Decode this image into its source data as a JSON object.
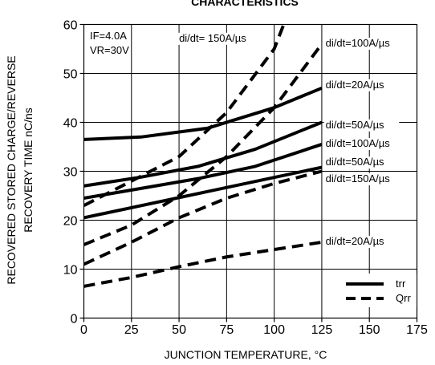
{
  "chart_data": {
    "type": "line",
    "title": "CHARACTERISTICS",
    "xlabel": "JUNCTION TEMPERATURE, °C",
    "ylabel": [
      "RECOVERED STORED CHARGE/REVERSE",
      "RECOVERY TIME nC/ns"
    ],
    "xlim": [
      0,
      175
    ],
    "ylim": [
      0,
      60
    ],
    "x_ticks": [
      0,
      25,
      50,
      75,
      100,
      125,
      150,
      175
    ],
    "y_ticks": [
      0,
      10,
      20,
      30,
      40,
      50,
      60
    ],
    "grid": true,
    "conditions": {
      "if_label": "IF=4.0A",
      "vr_label": "VR=30V"
    },
    "legend": {
      "position": "bottom-right",
      "trr": "trr",
      "qrr": "Qrr"
    },
    "series": [
      {
        "kind": "trr",
        "label": "di/dt=20A/µs",
        "x": [
          0,
          30,
          65,
          100,
          125
        ],
        "y": [
          36.5,
          37,
          38.8,
          43,
          47
        ]
      },
      {
        "kind": "trr",
        "label": "di/dt=50A/µs",
        "x": [
          0,
          30,
          60,
          90,
          125
        ],
        "y": [
          27,
          28.8,
          31,
          34.5,
          40
        ]
      },
      {
        "kind": "trr",
        "label": "di/dt=100A/µs",
        "x": [
          0,
          30,
          60,
          90,
          125
        ],
        "y": [
          24.5,
          26.5,
          28.5,
          31,
          35.5
        ]
      },
      {
        "kind": "trr",
        "label": "di/dt=150A/µs",
        "x": [
          0,
          125
        ],
        "y": [
          20.5,
          30.8
        ]
      },
      {
        "kind": "qrr",
        "label": "di/dt=150A/µs",
        "x": [
          0,
          25,
          50,
          75,
          100,
          105
        ],
        "y": [
          23,
          28,
          33,
          42,
          55,
          60
        ]
      },
      {
        "kind": "qrr",
        "label": "di/dt=100A/µs",
        "x": [
          0,
          25,
          50,
          75,
          100,
          125
        ],
        "y": [
          15,
          19,
          25,
          33,
          43,
          56
        ]
      },
      {
        "kind": "qrr",
        "label": "di/dt=50A/µs",
        "x": [
          0,
          25,
          50,
          75,
          100,
          125
        ],
        "y": [
          11,
          15.5,
          20.5,
          24.5,
          27.5,
          30
        ]
      },
      {
        "kind": "qrr",
        "label": "di/dt=20A/µs",
        "x": [
          0,
          25,
          50,
          75,
          100,
          125
        ],
        "y": [
          6.5,
          8.3,
          10.5,
          12.5,
          14,
          15.5
        ]
      }
    ],
    "annotations": [
      {
        "text": "di/dt= 150A/µs",
        "x": 50,
        "y": 56.5
      },
      {
        "text": "di/dt=100A/µs",
        "x": 127,
        "y": 55.5
      },
      {
        "text": "di/dt=20A/µs",
        "x": 127,
        "y": 47.0
      },
      {
        "text": "di/dt=50A/µs",
        "x": 127,
        "y": 38.8
      },
      {
        "text": "di/dt=100A/µs",
        "x": 127,
        "y": 35.0
      },
      {
        "text": "di/dt=50A/µs",
        "x": 127,
        "y": 31.2
      },
      {
        "text": "di/dt=150A/µs",
        "x": 127,
        "y": 27.8
      },
      {
        "text": "di/dt=20A/µs",
        "x": 127,
        "y": 15.0
      }
    ]
  }
}
